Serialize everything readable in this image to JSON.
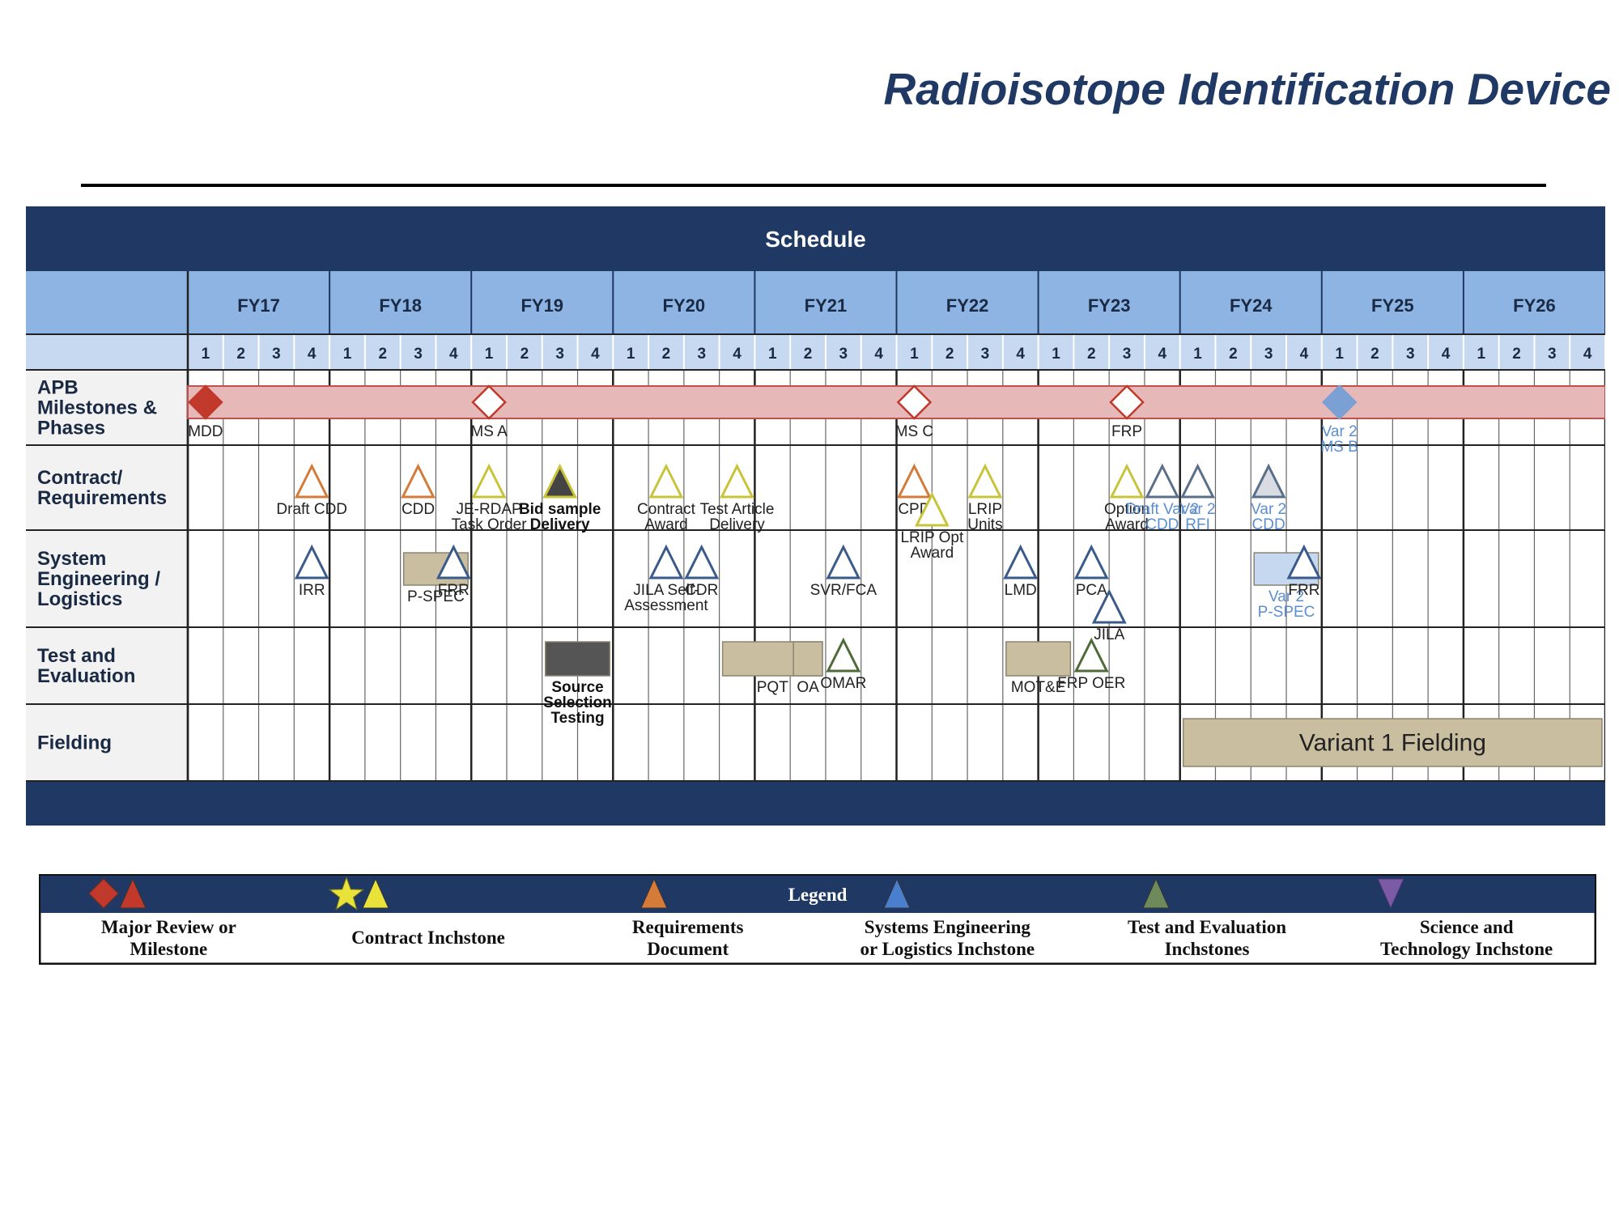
{
  "title": "Radioisotope Identification Device",
  "schedule": {
    "header": "Schedule",
    "fiscal_years": [
      "FY17",
      "FY18",
      "FY19",
      "FY20",
      "FY21",
      "FY22",
      "FY23",
      "FY24",
      "FY25",
      "FY26"
    ],
    "quarters": [
      "1",
      "2",
      "3",
      "4"
    ],
    "rows": [
      {
        "label": [
          "APB",
          "Milestones &",
          "Phases"
        ]
      },
      {
        "label": [
          "Contract/",
          "Requirements"
        ]
      },
      {
        "label": [
          "System",
          "Engineering /",
          "Logistics"
        ]
      },
      {
        "label": [
          "Test and",
          "Evaluation"
        ]
      },
      {
        "label": [
          "Fielding"
        ]
      }
    ],
    "phase_bar": {
      "start": "FY17 Q1",
      "end": "FY26 Q4"
    },
    "milestones": [
      {
        "row": 0,
        "symbol": "diamond-filled",
        "color": "#c0392b",
        "label": [
          "MDD"
        ],
        "when": "FY17 Q1"
      },
      {
        "row": 0,
        "symbol": "diamond-open",
        "color": "#c0392b",
        "label": [
          "MS A"
        ],
        "when": "FY19 Q1"
      },
      {
        "row": 0,
        "symbol": "diamond-open",
        "color": "#c0392b",
        "label": [
          "MS C"
        ],
        "when": "FY22 Q1"
      },
      {
        "row": 0,
        "symbol": "diamond-open",
        "color": "#c0392b",
        "label": [
          "FRP"
        ],
        "when": "FY23 Q3"
      },
      {
        "row": 0,
        "symbol": "diamond-filled",
        "color": "#7ba0d4",
        "label": [
          "Var 2",
          "MS B"
        ],
        "when": "FY25 Q1"
      },
      {
        "row": 1,
        "symbol": "triangle",
        "color": "#d47b3a",
        "label": [
          "Draft  CDD"
        ],
        "when": "FY17 Q4"
      },
      {
        "row": 1,
        "symbol": "triangle",
        "color": "#d47b3a",
        "label": [
          "CDD"
        ],
        "when": "FY18 Q3"
      },
      {
        "row": 1,
        "symbol": "triangle",
        "color": "#c8c43a",
        "label": [
          "JE-RDAP",
          "Task Order"
        ],
        "when": "FY19 Q1"
      },
      {
        "row": 1,
        "symbol": "triangle-filled",
        "color": "#c8c43a",
        "label": [
          "Bid sample",
          "Delivery"
        ],
        "when": "FY19 Q3"
      },
      {
        "row": 1,
        "symbol": "triangle",
        "color": "#c8c43a",
        "label": [
          "Contract",
          "Award"
        ],
        "when": "FY20 Q2"
      },
      {
        "row": 1,
        "symbol": "triangle",
        "color": "#c8c43a",
        "label": [
          "Test Article",
          "Delivery"
        ],
        "when": "FY20 Q4"
      },
      {
        "row": 1,
        "symbol": "triangle",
        "color": "#d47b3a",
        "label": [
          "CPD"
        ],
        "when": "FY22 Q1"
      },
      {
        "row": 1,
        "symbol": "triangle",
        "color": "#c8c43a",
        "label": [
          "LRIP Opt",
          "Award"
        ],
        "when": "FY22 Q1"
      },
      {
        "row": 1,
        "symbol": "triangle",
        "color": "#c8c43a",
        "label": [
          "LRIP",
          "Units"
        ],
        "when": "FY22 Q3"
      },
      {
        "row": 1,
        "symbol": "triangle",
        "color": "#c8c43a",
        "label": [
          "Option",
          "Award"
        ],
        "when": "FY23 Q3"
      },
      {
        "row": 1,
        "symbol": "triangle",
        "color": "#5a6f8a",
        "label": [
          "Draft  Var 2",
          "CDD"
        ],
        "when": "FY23 Q4"
      },
      {
        "row": 1,
        "symbol": "triangle",
        "color": "#5a6f8a",
        "label": [
          "Var 2",
          "RFI"
        ],
        "when": "FY24 Q1"
      },
      {
        "row": 1,
        "symbol": "triangle-shaded",
        "color": "#5a6f8a",
        "label": [
          "Var 2",
          "CDD"
        ],
        "when": "FY24 Q3"
      },
      {
        "row": 2,
        "symbol": "triangle",
        "color": "#3a5a8a",
        "label": [
          "IRR"
        ],
        "when": "FY17 Q4"
      },
      {
        "row": 2,
        "symbol": "triangle",
        "color": "#3a5a8a",
        "label": [
          "FRR"
        ],
        "when": "FY18 Q4"
      },
      {
        "row": 2,
        "symbol": "triangle",
        "color": "#3a5a8a",
        "label": [
          "JILA Self-",
          "Assessment"
        ],
        "when": "FY20 Q2"
      },
      {
        "row": 2,
        "symbol": "triangle",
        "color": "#3a5a8a",
        "label": [
          "CDR"
        ],
        "when": "FY20 Q3"
      },
      {
        "row": 2,
        "symbol": "triangle",
        "color": "#3a5a8a",
        "label": [
          "SVR/FCA"
        ],
        "when": "FY21 Q3"
      },
      {
        "row": 2,
        "symbol": "triangle",
        "color": "#3a5a8a",
        "label": [
          "LMD"
        ],
        "when": "FY22 Q4"
      },
      {
        "row": 2,
        "symbol": "triangle",
        "color": "#3a5a8a",
        "label": [
          "PCA"
        ],
        "when": "FY23 Q2"
      },
      {
        "row": 2,
        "symbol": "triangle",
        "color": "#3a5a8a",
        "label": [
          "JILA"
        ],
        "when": "FY23 Q2"
      },
      {
        "row": 2,
        "symbol": "triangle",
        "color": "#3a5a8a",
        "label": [
          "FRR"
        ],
        "when": "FY24 Q4"
      },
      {
        "row": 3,
        "symbol": "triangle",
        "color": "#4f6b3a",
        "label": [
          "OMAR"
        ],
        "when": "FY21 Q3"
      },
      {
        "row": 3,
        "symbol": "triangle",
        "color": "#4f6b3a",
        "label": [
          "FRP OER"
        ],
        "when": "FY23 Q2"
      }
    ],
    "activities": [
      {
        "row": 2,
        "label": [
          "P-SPEC"
        ],
        "color": "#c9bfa0",
        "start": "FY18 Q3",
        "end": "FY18 Q4"
      },
      {
        "row": 2,
        "label": [
          "Var 2",
          "P-SPEC"
        ],
        "color": "#c5d8f0",
        "start": "FY24 Q3",
        "end": "FY24 Q4"
      },
      {
        "row": 3,
        "label": [
          "Source",
          "Selection",
          "Testing"
        ],
        "color": "#555555",
        "start": "FY19 Q3",
        "end": "FY19 Q4"
      },
      {
        "row": 3,
        "label": [
          "PQT"
        ],
        "color": "#c9bfa0",
        "start": "FY20 Q4",
        "end": "FY21 Q2"
      },
      {
        "row": 3,
        "label": [
          "OA"
        ],
        "color": "#c9bfa0",
        "start": "FY21 Q2",
        "end": "FY21 Q2"
      },
      {
        "row": 3,
        "label": [
          "MOT&E"
        ],
        "color": "#c9bfa0",
        "start": "FY22 Q4",
        "end": "FY23 Q1"
      },
      {
        "row": 4,
        "label": [
          "Variant 1 Fielding"
        ],
        "color": "#c9bfa0",
        "start": "FY24 Q1",
        "end": "FY26 Q4"
      }
    ]
  },
  "legend": {
    "title": "Legend",
    "items": [
      {
        "label": [
          "Major Review or",
          "Milestone"
        ],
        "icons": [
          "diamond-icon",
          "triangle-icon"
        ],
        "color": "#c0392b"
      },
      {
        "label": [
          "Contract Inchstone"
        ],
        "icons": [
          "star-icon",
          "triangle-icon"
        ],
        "color": "#e8e23a"
      },
      {
        "label": [
          "Requirements",
          "Document"
        ],
        "icons": [
          "triangle-icon"
        ],
        "color": "#d47b3a"
      },
      {
        "label": [
          "Systems Engineering",
          "or Logistics Inchstone"
        ],
        "icons": [
          "triangle-icon"
        ],
        "color": "#4a7fd0"
      },
      {
        "label": [
          "Test and Evaluation",
          "Inchstones"
        ],
        "icons": [
          "triangle-icon"
        ],
        "color": "#6e8a5a"
      },
      {
        "label": [
          "Science and",
          "Technology Inchstone"
        ],
        "icons": [
          "inverted-triangle-icon"
        ],
        "color": "#7b5aa6"
      }
    ]
  }
}
